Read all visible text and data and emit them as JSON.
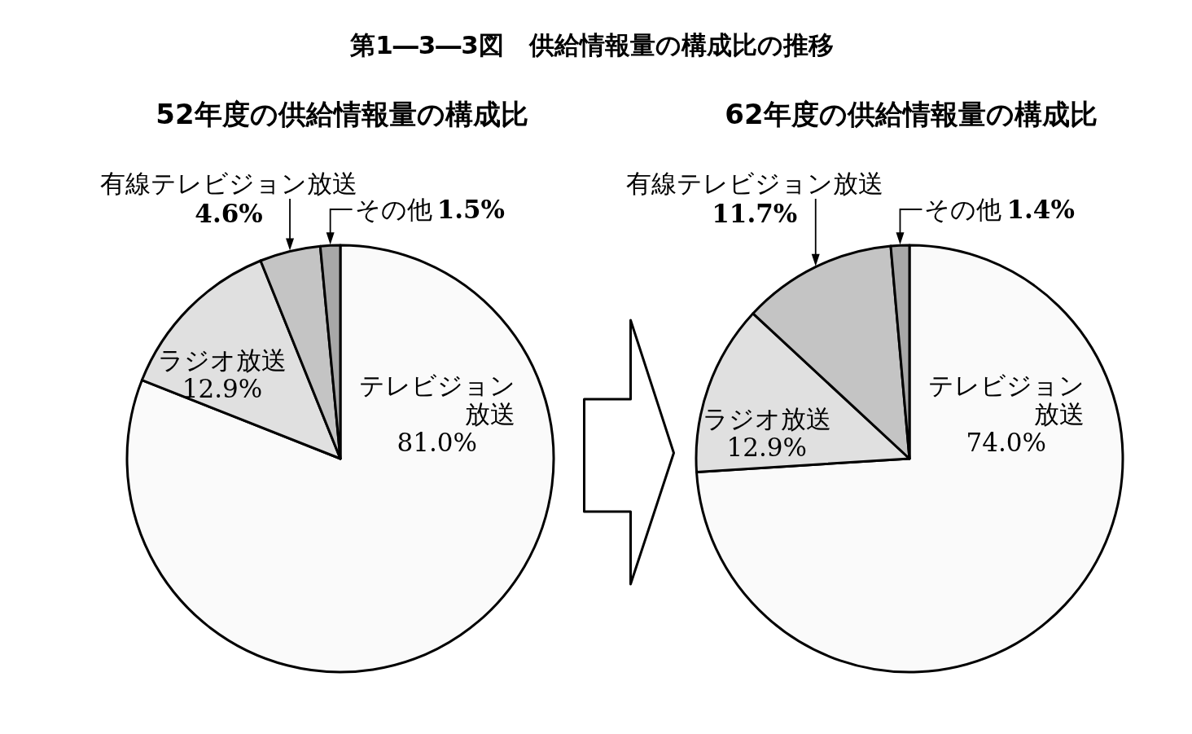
{
  "chart_data": [
    {
      "type": "other",
      "title": "第1―3―3図　供給情報量の構成比の推移"
    },
    {
      "type": "pie",
      "title": "52年度の供給情報量の構成比",
      "categories": [
        "テレビジョン放送",
        "ラジオ放送",
        "有線テレビジョン放送",
        "その他"
      ],
      "values": [
        81.0,
        12.9,
        4.6,
        1.5
      ],
      "value_labels": [
        "81.0%",
        "12.9%",
        "4.6%",
        "1.5%"
      ],
      "colors": [
        "#fafafa",
        "#e0e0e0",
        "#c4c4c4",
        "#a8a8a8"
      ]
    },
    {
      "type": "pie",
      "title": "62年度の供給情報量の構成比",
      "categories": [
        "テレビジョン放送",
        "ラジオ放送",
        "有線テレビジョン放送",
        "その他"
      ],
      "values": [
        74.0,
        12.9,
        11.7,
        1.4
      ],
      "value_labels": [
        "74.0%",
        "12.9%",
        "11.7%",
        "1.4%"
      ],
      "colors": [
        "#fafafa",
        "#e0e0e0",
        "#c4c4c4",
        "#a8a8a8"
      ]
    }
  ]
}
